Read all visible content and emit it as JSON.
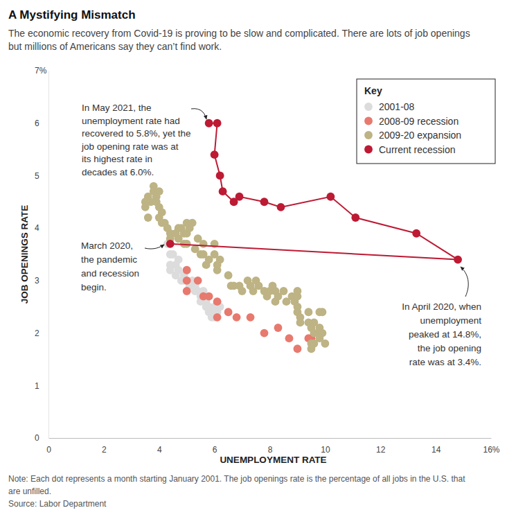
{
  "chart_data": {
    "type": "scatter",
    "title": "A Mystifying Mismatch",
    "subtitle": [
      "The economic recovery from Covid-19 is proving to be slow and complicated. There are lots of job openings",
      "but millions of Americans say they can’t find work."
    ],
    "x_label": "UNEMPLOYMENT RATE",
    "y_label": "JOB OPENINGS RATE",
    "xlim": [
      0,
      16
    ],
    "xticks": [
      0,
      2,
      4,
      6,
      8,
      10,
      12,
      14,
      {
        "value": 16,
        "label": "16%"
      }
    ],
    "ylim": [
      0,
      7
    ],
    "yticks": [
      0,
      1,
      2,
      3,
      4,
      5,
      6,
      {
        "value": 7,
        "label": "7%"
      }
    ],
    "grid": false,
    "legend": "top-right",
    "legend_title": "Key",
    "marker": "circle",
    "series": [
      {
        "name": "2001-08",
        "color": "#dcdcdc",
        "x": [
          4.3,
          4.4,
          4.4,
          4.4,
          4.6,
          4.7,
          4.7,
          4.6,
          4.8,
          4.9,
          5.0,
          5.1,
          5.2,
          5.3,
          5.4,
          5.5,
          5.5,
          5.6,
          5.7,
          5.8,
          5.9,
          5.9,
          6.0,
          6.1,
          6.2,
          5.7,
          5.6,
          5.0,
          4.5,
          4.9,
          5.3,
          5.8,
          6.0
        ],
        "values": [
          3.7,
          3.5,
          3.3,
          3.2,
          3.3,
          3.4,
          3.2,
          3.1,
          3.0,
          3.0,
          3.0,
          2.9,
          3.0,
          2.9,
          2.8,
          2.7,
          2.6,
          2.7,
          2.6,
          2.5,
          2.4,
          2.3,
          2.3,
          2.4,
          2.5,
          2.5,
          2.8,
          3.2,
          3.5,
          3.1,
          2.8,
          2.4,
          2.5
        ]
      },
      {
        "name": "2008-09 recession",
        "color": "#e8796e",
        "x": [
          5.0,
          5.0,
          5.0,
          5.4,
          5.6,
          5.8,
          6.1,
          6.1,
          6.5,
          6.8,
          7.3,
          7.8,
          8.3,
          8.7,
          9.0,
          9.4,
          9.5
        ],
        "values": [
          3.2,
          3.0,
          2.8,
          3.0,
          2.7,
          2.7,
          2.6,
          2.3,
          2.4,
          2.3,
          2.3,
          2.0,
          2.1,
          1.9,
          1.7,
          1.9,
          1.9
        ]
      },
      {
        "name": "2009-20 expansion",
        "color": "#bdb384",
        "x": [
          3.5,
          3.5,
          3.6,
          3.6,
          3.7,
          3.8,
          3.8,
          3.9,
          4.0,
          3.9,
          4.0,
          4.1,
          4.0,
          4.1,
          4.2,
          4.3,
          4.4,
          4.4,
          4.6,
          4.7,
          4.8,
          4.7,
          4.9,
          5.0,
          5.0,
          5.1,
          5.2,
          5.0,
          4.9,
          5.3,
          5.4,
          5.5,
          5.6,
          5.7,
          5.6,
          5.8,
          6.0,
          6.0,
          6.1,
          6.2,
          6.1,
          6.5,
          6.6,
          6.7,
          6.9,
          7.0,
          7.2,
          7.3,
          7.4,
          7.5,
          7.6,
          7.8,
          7.9,
          8.0,
          8.1,
          8.2,
          8.2,
          8.3,
          8.5,
          8.6,
          8.8,
          8.9,
          9.0,
          9.0,
          9.0,
          9.0,
          9.1,
          9.1,
          9.4,
          9.4,
          9.5,
          9.6,
          9.6,
          9.5,
          9.5,
          9.6,
          9.8,
          9.8,
          9.8,
          9.9,
          9.9,
          9.8,
          10.0
        ],
        "values": [
          4.4,
          4.5,
          4.2,
          4.6,
          4.5,
          4.8,
          4.7,
          4.6,
          4.7,
          4.5,
          4.4,
          4.3,
          4.2,
          4.1,
          4.1,
          4.0,
          3.8,
          3.9,
          3.9,
          4.0,
          4.0,
          3.8,
          3.9,
          4.1,
          3.9,
          4.0,
          4.1,
          3.7,
          3.7,
          3.6,
          3.8,
          3.5,
          3.7,
          3.3,
          3.5,
          3.4,
          3.7,
          3.5,
          3.2,
          3.4,
          3.3,
          3.1,
          2.9,
          2.9,
          2.9,
          2.8,
          3.0,
          2.9,
          2.8,
          3.0,
          2.9,
          2.8,
          2.7,
          2.8,
          2.9,
          2.8,
          2.6,
          2.7,
          2.8,
          2.6,
          2.7,
          2.6,
          2.7,
          2.8,
          2.5,
          2.4,
          2.3,
          2.2,
          2.2,
          2.4,
          2.1,
          2.2,
          2.0,
          1.8,
          1.7,
          1.8,
          2.0,
          2.1,
          1.9,
          2.0,
          2.4,
          2.4,
          1.8
        ]
      },
      {
        "name": "Current recession",
        "color": "#bd1a34",
        "line_style": "solid",
        "x": [
          4.4,
          14.8,
          13.3,
          11.1,
          10.2,
          8.4,
          7.8,
          6.9,
          6.7,
          6.3,
          6.2,
          6.0,
          6.1,
          5.8
        ],
        "values": [
          3.7,
          3.4,
          3.9,
          4.2,
          4.6,
          4.4,
          4.5,
          4.6,
          4.5,
          4.7,
          5.0,
          5.4,
          6.0,
          6.0
        ]
      }
    ],
    "annotations": [
      {
        "text": [
          "In May 2021, the",
          "unemployment rate had",
          "recovered to 5.8%, yet the",
          "job opening rate was at",
          "its highest rate in",
          "decades at 6.0%."
        ]
      },
      {
        "text": [
          "March 2020,",
          "the pandemic",
          "and recession",
          "begin."
        ]
      },
      {
        "text": [
          "In April 2020, when",
          "unemployment",
          "peaked at 14.8%,",
          "the job opening",
          "rate was at 3.4%."
        ]
      }
    ],
    "note": [
      "Note: Each dot represents a month starting January 2001. The job openings rate is the percentage of all jobs in the U.S. that",
      "are unfilled."
    ],
    "source": "Source: Labor Department"
  }
}
